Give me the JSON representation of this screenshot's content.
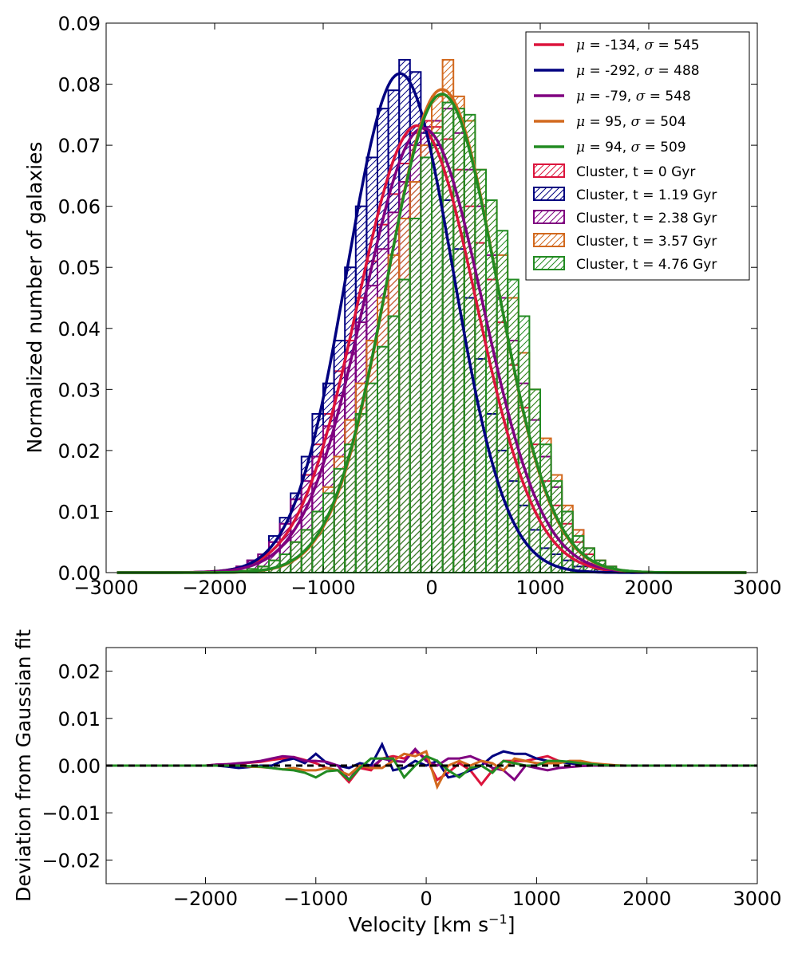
{
  "chart_data": [
    {
      "type": "histogram+line",
      "title": "",
      "xlabel": "",
      "ylabel": "Normalized number of galaxies",
      "xlim": [
        -3000,
        3000
      ],
      "ylim": [
        0,
        0.09
      ],
      "xticks": [
        -3000,
        -2000,
        -1000,
        0,
        1000,
        2000,
        3000
      ],
      "xtick_labels": [
        "−3000",
        "−2000",
        "−1000",
        "0",
        "1000",
        "2000",
        "3000"
      ],
      "yticks": [
        0,
        0.01,
        0.02,
        0.03,
        0.04,
        0.05,
        0.06,
        0.07,
        0.08,
        0.09
      ],
      "ytick_labels": [
        "0.00",
        "0.01",
        "0.02",
        "0.03",
        "0.04",
        "0.05",
        "0.06",
        "0.07",
        "0.08",
        "0.09"
      ],
      "legend_position": "top-right",
      "histogram_bin_width": 100,
      "histogram_bin_centers": [
        -1750,
        -1650,
        -1550,
        -1450,
        -1350,
        -1250,
        -1150,
        -1050,
        -950,
        -850,
        -750,
        -650,
        -550,
        -450,
        -350,
        -250,
        -150,
        -50,
        50,
        150,
        250,
        350,
        450,
        550,
        650,
        750,
        850,
        950,
        1050,
        1150,
        1250,
        1350,
        1450,
        1550,
        1650
      ],
      "series": [
        {
          "name": "t = 0 Gyr",
          "color": "#dc143c",
          "mu": -134,
          "sigma": 545,
          "line_label": "= -134,  = 545",
          "hist_label": "Cluster, t = 0 Gyr",
          "hist_values": [
            0.001,
            0.002,
            0.003,
            0.005,
            0.008,
            0.012,
            0.016,
            0.021,
            0.026,
            0.033,
            0.038,
            0.045,
            0.051,
            0.057,
            0.062,
            0.067,
            0.072,
            0.074,
            0.073,
            0.071,
            0.066,
            0.06,
            0.054,
            0.048,
            0.041,
            0.034,
            0.027,
            0.021,
            0.015,
            0.011,
            0.008,
            0.005,
            0.003,
            0.002,
            0.001
          ]
        },
        {
          "name": "t = 1.19 Gyr",
          "color": "#000080",
          "mu": -292,
          "sigma": 488,
          "line_label": "= -292,  = 488",
          "hist_label": "Cluster, t = 1.19 Gyr",
          "hist_values": [
            0.001,
            0.002,
            0.003,
            0.006,
            0.009,
            0.013,
            0.019,
            0.026,
            0.031,
            0.038,
            0.05,
            0.06,
            0.068,
            0.076,
            0.079,
            0.084,
            0.082,
            0.072,
            0.07,
            0.061,
            0.053,
            0.045,
            0.035,
            0.026,
            0.02,
            0.015,
            0.011,
            0.007,
            0.004,
            0.003,
            0.002,
            0.001,
            0.001,
            0.0005,
            0.0003
          ]
        },
        {
          "name": "t = 2.38 Gyr",
          "color": "#800080",
          "mu": -79,
          "sigma": 548,
          "line_label": "= -79,  = 548",
          "hist_label": "Cluster, t = 2.38 Gyr",
          "hist_values": [
            0.001,
            0.002,
            0.003,
            0.005,
            0.008,
            0.012,
            0.015,
            0.019,
            0.024,
            0.029,
            0.036,
            0.041,
            0.047,
            0.053,
            0.059,
            0.064,
            0.07,
            0.073,
            0.074,
            0.076,
            0.072,
            0.066,
            0.06,
            0.052,
            0.045,
            0.038,
            0.031,
            0.025,
            0.019,
            0.014,
            0.01,
            0.007,
            0.004,
            0.002,
            0.001
          ]
        },
        {
          "name": "t = 3.57 Gyr",
          "color": "#d2691e",
          "mu": 95,
          "sigma": 504,
          "line_label": "= 95,  = 504",
          "hist_label": "Cluster, t = 3.57 Gyr",
          "hist_values": [
            0.0003,
            0.0006,
            0.001,
            0.002,
            0.003,
            0.005,
            0.007,
            0.01,
            0.014,
            0.019,
            0.025,
            0.031,
            0.038,
            0.045,
            0.052,
            0.058,
            0.064,
            0.07,
            0.078,
            0.084,
            0.078,
            0.074,
            0.066,
            0.061,
            0.052,
            0.045,
            0.036,
            0.03,
            0.022,
            0.016,
            0.011,
            0.007,
            0.004,
            0.002,
            0.001
          ]
        },
        {
          "name": "t = 4.76 Gyr",
          "color": "#228b22",
          "mu": 94,
          "sigma": 509,
          "line_label": "= 94,  = 509",
          "hist_label": "Cluster, t = 4.76 Gyr",
          "hist_values": [
            0.0003,
            0.0006,
            0.001,
            0.002,
            0.003,
            0.005,
            0.007,
            0.01,
            0.013,
            0.017,
            0.021,
            0.026,
            0.031,
            0.037,
            0.042,
            0.048,
            0.058,
            0.068,
            0.072,
            0.077,
            0.076,
            0.075,
            0.066,
            0.061,
            0.056,
            0.048,
            0.042,
            0.03,
            0.021,
            0.015,
            0.01,
            0.006,
            0.004,
            0.002,
            0.001
          ]
        }
      ]
    },
    {
      "type": "line",
      "title": "",
      "xlabel": "Velocity [km s",
      "xlabel_superscript": "−1",
      "xlabel_suffix": "]",
      "ylabel": "Deviation from Gaussian fit",
      "xlim": [
        -2900,
        3000
      ],
      "ylim": [
        -0.025,
        0.025
      ],
      "xticks": [
        -2000,
        -1000,
        0,
        1000,
        2000,
        3000
      ],
      "xtick_labels": [
        "−2000",
        "−1000",
        "0",
        "1000",
        "2000",
        "3000"
      ],
      "yticks": [
        -0.02,
        -0.01,
        0.0,
        0.01,
        0.02
      ],
      "ytick_labels": [
        "−0.02",
        "−0.01",
        "0.00",
        "0.01",
        "0.02"
      ],
      "reference_line": {
        "y": 0,
        "style": "dashed",
        "color": "#000000"
      },
      "x": [
        -2900,
        -2000,
        -1900,
        -1800,
        -1700,
        -1600,
        -1500,
        -1400,
        -1300,
        -1200,
        -1100,
        -1000,
        -900,
        -800,
        -700,
        -600,
        -500,
        -400,
        -300,
        -200,
        -100,
        0,
        100,
        200,
        300,
        400,
        500,
        600,
        700,
        800,
        900,
        1000,
        1100,
        1200,
        1300,
        1400,
        1500,
        1600,
        1700,
        1800,
        2000,
        3000
      ],
      "series": [
        {
          "name": "t = 0 Gyr",
          "color": "#dc143c",
          "values": [
            0,
            0,
            0.0002,
            0.0003,
            0.0004,
            0.0006,
            0.0008,
            0.0012,
            0.0015,
            0.0018,
            0.0012,
            0.0005,
            -0.0005,
            -0.001,
            -0.0035,
            -0.0005,
            -0.001,
            0.0015,
            0.002,
            0.0015,
            0.003,
            0.0015,
            -0.003,
            -0.0015,
            0.0005,
            -0.001,
            -0.004,
            -0.001,
            0.001,
            0.001,
            0.001,
            0.0015,
            0.002,
            0.001,
            0.0005,
            0.0003,
            0.0002,
            0.0001,
            0,
            0,
            0,
            0
          ]
        },
        {
          "name": "t = 1.19 Gyr",
          "color": "#000080",
          "values": [
            0,
            0,
            0,
            -0.0002,
            -0.0005,
            -0.0003,
            0,
            0,
            0.001,
            0.0015,
            0.0005,
            0.0025,
            0.0005,
            0,
            -0.0005,
            0.0005,
            0,
            0.0045,
            -0.001,
            -0.0005,
            0.001,
            0,
            0.001,
            -0.0025,
            -0.002,
            -0.001,
            0,
            0.002,
            0.003,
            0.0025,
            0.0025,
            0.0015,
            0.001,
            0.0008,
            0.0005,
            0.0002,
            0.0001,
            0.0001,
            0,
            0,
            0,
            0
          ]
        },
        {
          "name": "t = 2.38 Gyr",
          "color": "#800080",
          "values": [
            0,
            0,
            0.0002,
            0.0003,
            0.0005,
            0.0007,
            0.001,
            0.0015,
            0.002,
            0.0018,
            0.001,
            0.001,
            0.0008,
            0,
            -0.003,
            0,
            -0.0005,
            0.0015,
            0.001,
            0.0008,
            0.0035,
            0.001,
            0,
            0.0015,
            0.0015,
            0.002,
            0.001,
            -0.0005,
            -0.001,
            -0.003,
            0,
            -0.0005,
            -0.001,
            -0.0005,
            -0.0003,
            -0.0001,
            0,
            0,
            0,
            0,
            0,
            0
          ]
        },
        {
          "name": "t = 3.57 Gyr",
          "color": "#d2691e",
          "values": [
            0,
            0,
            0,
            0,
            0,
            -0.0002,
            -0.0003,
            -0.0005,
            -0.0008,
            -0.0005,
            -0.001,
            -0.001,
            -0.0005,
            -0.001,
            -0.002,
            0,
            -0.0005,
            -0.0005,
            0.001,
            0.0025,
            0.002,
            0.003,
            -0.0045,
            0,
            0.001,
            0,
            0.001,
            0.0005,
            -0.001,
            0.0015,
            0.001,
            0.0005,
            0.0005,
            0.0005,
            0.001,
            0.001,
            0.0005,
            0.0003,
            0.0001,
            0,
            0,
            0
          ]
        },
        {
          "name": "t = 4.76 Gyr",
          "color": "#228b22",
          "values": [
            0,
            0,
            0,
            0,
            0,
            -0.0001,
            -0.0002,
            -0.0005,
            -0.0008,
            -0.001,
            -0.0015,
            -0.0025,
            -0.0012,
            -0.001,
            -0.003,
            -0.0005,
            0.0015,
            0.0015,
            0.0015,
            -0.0025,
            0,
            0.002,
            0.001,
            -0.001,
            -0.0025,
            -0.0005,
            0,
            -0.0015,
            0.001,
            0.0005,
            0,
            0,
            0.001,
            0.001,
            0.0008,
            0.0005,
            0.0003,
            0.0001,
            0,
            0,
            0,
            0
          ]
        }
      ]
    }
  ]
}
